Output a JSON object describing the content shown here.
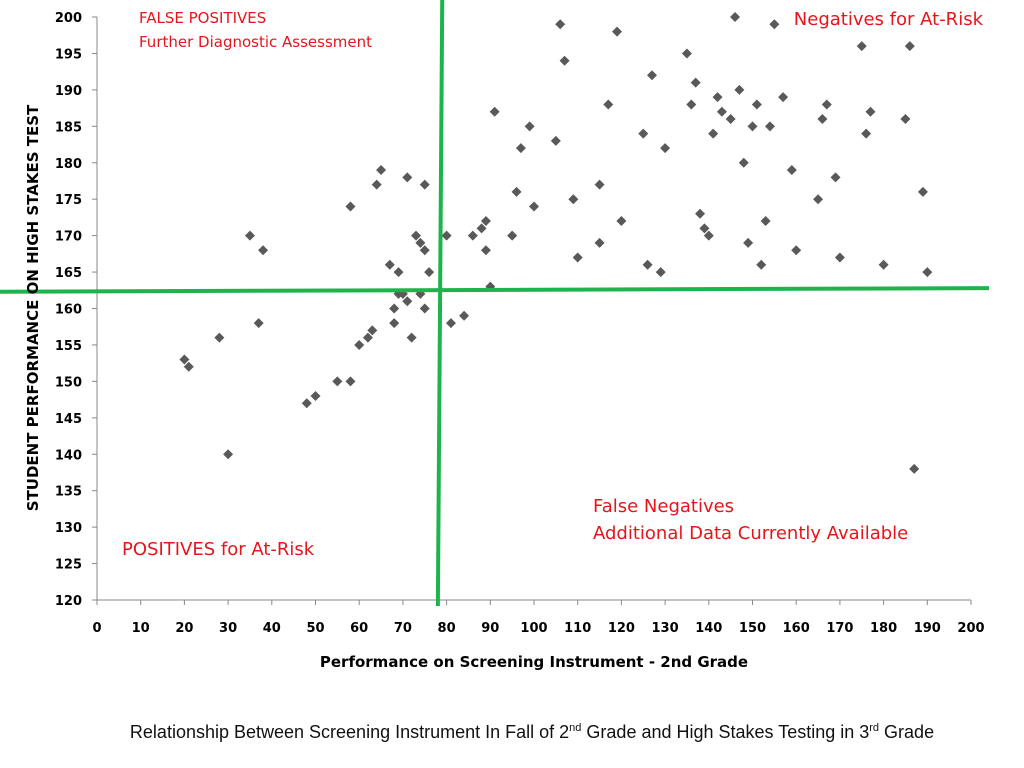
{
  "chart_data": {
    "type": "scatter",
    "title": "",
    "xlabel": "Performance on Screening Instrument - 2nd Grade",
    "ylabel": "STUDENT PERFORMANCE ON HIGH STAKES TEST",
    "xlim": [
      0,
      200
    ],
    "ylim": [
      120,
      200
    ],
    "x_ticks": [
      "0",
      "10",
      "20",
      "30",
      "40",
      "50",
      "60",
      "70",
      "80",
      "90",
      "100",
      "110",
      "120",
      "130",
      "140",
      "150",
      "160",
      "170",
      "180",
      "190",
      "200"
    ],
    "y_ticks": [
      "120",
      "125",
      "130",
      "135",
      "140",
      "145",
      "150",
      "155",
      "160",
      "165",
      "170",
      "175",
      "180",
      "185",
      "190",
      "195",
      "200"
    ],
    "grid": false,
    "marker_color": "#595959",
    "cutoff_line_color": "#1db34d",
    "cutoff_lines": {
      "vertical": {
        "x_top": 79,
        "x_bottom": 78
      },
      "horizontal": {
        "y_left": 162.3,
        "y_right": 162.8
      }
    },
    "annotations": {
      "false_positives": "FALSE POSITIVES",
      "further_assessment": "Further Diagnostic Assessment",
      "negatives": "Negatives for At-Risk",
      "false_negatives": "False Negatives",
      "additional_data": "Additional Data Currently Available",
      "positives": "POSITIVES for At-Risk",
      "color": "#e8141c"
    },
    "points": [
      [
        20,
        153
      ],
      [
        21,
        152
      ],
      [
        28,
        156
      ],
      [
        30,
        140
      ],
      [
        35,
        170
      ],
      [
        37,
        158
      ],
      [
        38,
        168
      ],
      [
        48,
        147
      ],
      [
        50,
        148
      ],
      [
        55,
        150
      ],
      [
        58,
        150
      ],
      [
        58,
        174
      ],
      [
        60,
        155
      ],
      [
        62,
        156
      ],
      [
        63,
        157
      ],
      [
        64,
        177
      ],
      [
        65,
        179
      ],
      [
        67,
        166
      ],
      [
        68,
        160
      ],
      [
        68,
        158
      ],
      [
        69,
        165
      ],
      [
        69,
        162
      ],
      [
        70,
        162
      ],
      [
        71,
        161
      ],
      [
        71,
        178
      ],
      [
        72,
        156
      ],
      [
        73,
        170
      ],
      [
        74,
        169
      ],
      [
        74,
        162
      ],
      [
        75,
        168
      ],
      [
        75,
        160
      ],
      [
        75,
        177
      ],
      [
        76,
        165
      ],
      [
        80,
        170
      ],
      [
        81,
        158
      ],
      [
        84,
        159
      ],
      [
        86,
        170
      ],
      [
        88,
        171
      ],
      [
        89,
        172
      ],
      [
        89,
        168
      ],
      [
        90,
        163
      ],
      [
        91,
        187
      ],
      [
        95,
        170
      ],
      [
        96,
        176
      ],
      [
        97,
        182
      ],
      [
        99,
        185
      ],
      [
        100,
        174
      ],
      [
        105,
        183
      ],
      [
        106,
        199
      ],
      [
        107,
        194
      ],
      [
        109,
        175
      ],
      [
        110,
        167
      ],
      [
        115,
        169
      ],
      [
        115,
        177
      ],
      [
        117,
        188
      ],
      [
        119,
        198
      ],
      [
        120,
        172
      ],
      [
        125,
        184
      ],
      [
        126,
        166
      ],
      [
        127,
        192
      ],
      [
        129,
        165
      ],
      [
        130,
        182
      ],
      [
        135,
        195
      ],
      [
        136,
        188
      ],
      [
        137,
        191
      ],
      [
        138,
        173
      ],
      [
        139,
        171
      ],
      [
        140,
        170
      ],
      [
        141,
        184
      ],
      [
        142,
        189
      ],
      [
        143,
        187
      ],
      [
        145,
        186
      ],
      [
        146,
        200
      ],
      [
        147,
        190
      ],
      [
        148,
        180
      ],
      [
        149,
        169
      ],
      [
        150,
        185
      ],
      [
        151,
        188
      ],
      [
        152,
        166
      ],
      [
        153,
        172
      ],
      [
        154,
        185
      ],
      [
        155,
        199
      ],
      [
        157,
        189
      ],
      [
        159,
        179
      ],
      [
        160,
        168
      ],
      [
        165,
        175
      ],
      [
        166,
        186
      ],
      [
        167,
        188
      ],
      [
        169,
        178
      ],
      [
        170,
        167
      ],
      [
        175,
        196
      ],
      [
        176,
        184
      ],
      [
        177,
        187
      ],
      [
        180,
        166
      ],
      [
        185,
        186
      ],
      [
        186,
        196
      ],
      [
        187,
        138
      ],
      [
        189,
        176
      ],
      [
        190,
        165
      ]
    ]
  },
  "caption": {
    "part1": "Relationship Between Screening Instrument In Fall of 2",
    "sup1": "nd",
    "part2": " Grade and High Stakes Testing in 3",
    "sup2": "rd",
    "part3": " Grade"
  }
}
